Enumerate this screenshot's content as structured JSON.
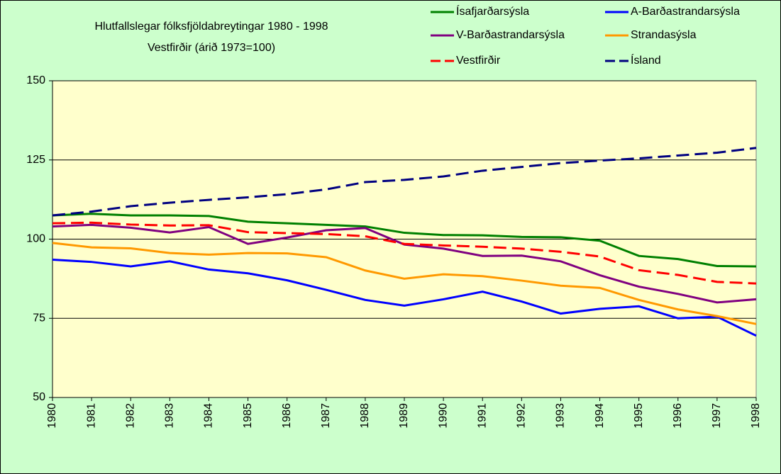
{
  "chart_data": {
    "type": "line",
    "title": "Hlutfallslegar fólksfjöldabreytingar 1980 - 1998",
    "subtitle": "Vestfirðir (árið 1973=100)",
    "categories": [
      "1980",
      "1981",
      "1982",
      "1983",
      "1984",
      "1985",
      "1986",
      "1987",
      "1988",
      "1989",
      "1990",
      "1991",
      "1992",
      "1993",
      "1994",
      "1995",
      "1996",
      "1997",
      "1998"
    ],
    "series": [
      {
        "name": "Ísafjarðarsýsla",
        "color": "#008000",
        "dash": false,
        "values": [
          107.5,
          108,
          107.5,
          107.5,
          107.3,
          105.5,
          105,
          104.5,
          104,
          102,
          101.3,
          101.2,
          100.7,
          100.6,
          99.5,
          94.7,
          93.7,
          91.5,
          91.4
        ]
      },
      {
        "name": "A-Barðastrandarsýsla",
        "color": "#0000ff",
        "dash": false,
        "values": [
          93.5,
          92.8,
          91.4,
          93,
          90.4,
          89.2,
          87,
          84,
          80.8,
          79,
          81,
          83.4,
          80.3,
          76.5,
          78,
          78.8,
          75,
          75.5,
          69.5
        ]
      },
      {
        "name": "V-Barðastrandarsýsla",
        "color": "#800080",
        "dash": false,
        "values": [
          104,
          104.5,
          103.6,
          102.1,
          103.8,
          98.5,
          100.5,
          102.8,
          103.5,
          98.3,
          97,
          94.7,
          94.8,
          93,
          88.6,
          85,
          82.7,
          80,
          81
        ]
      },
      {
        "name": "Strandasýsla",
        "color": "#ff9900",
        "dash": false,
        "values": [
          98.8,
          97.4,
          97.1,
          95.6,
          95.1,
          95.6,
          95.5,
          94.3,
          90.1,
          87.5,
          88.9,
          88.3,
          86.9,
          85.3,
          84.6,
          80.8,
          77.8,
          75.7,
          73.2
        ]
      },
      {
        "name": "Vestfirðir",
        "color": "#ff0000",
        "dash": true,
        "values": [
          105,
          105.2,
          104.6,
          104.3,
          104.4,
          102.2,
          101.9,
          101.6,
          100.9,
          98.5,
          98,
          97.6,
          97,
          96,
          94.5,
          90.2,
          88.7,
          86.5,
          86
        ]
      },
      {
        "name": "Ísland",
        "color": "#000080",
        "dash": true,
        "values": [
          107.5,
          108.7,
          110.4,
          111.5,
          112.4,
          113.2,
          114.2,
          115.7,
          118,
          118.7,
          119.8,
          121.6,
          122.8,
          124,
          124.8,
          125.5,
          126.4,
          127.3,
          128.8
        ]
      }
    ],
    "ylim": [
      50,
      150
    ],
    "yticks": [
      50,
      75,
      100,
      125,
      150
    ],
    "grid": true,
    "legend": "top right"
  }
}
